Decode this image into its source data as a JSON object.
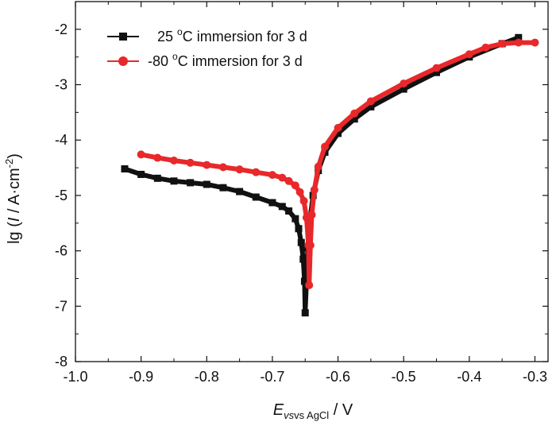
{
  "chart_data": {
    "type": "line",
    "title": "",
    "xlabel": {
      "main": "E",
      "sub": "vs AgCl",
      "rest": " / V"
    },
    "ylabel": {
      "pre": "lg (",
      "var": "I",
      "mid": " / A·cm",
      "sup": "-2",
      "post": ")"
    },
    "xlim": [
      -1.0,
      -0.28
    ],
    "ylim": [
      -8,
      -1.5
    ],
    "xticks": [
      -1.0,
      -0.9,
      -0.8,
      -0.7,
      -0.6,
      -0.5,
      -0.4,
      -0.3
    ],
    "xtick_labels": [
      "-1.0",
      "-0.9",
      "-0.8",
      "-0.7",
      "-0.6",
      "-0.5",
      "-0.4",
      "-0.3"
    ],
    "yticks": [
      -8,
      -7,
      -6,
      -5,
      -4,
      -3,
      -2
    ],
    "ytick_labels": [
      "-8",
      "-7",
      "-6",
      "-5",
      "-4",
      "-3",
      "-2"
    ],
    "legend_position": "top-left",
    "series": [
      {
        "name": "25 °C immersion for 3 d",
        "legend_parts": {
          "num": "25 ",
          "sup": "o",
          "rest": "C immersion for 3 d"
        },
        "color": "#111111",
        "marker": "square",
        "points": [
          [
            -0.925,
            -4.52
          ],
          [
            -0.9,
            -4.62
          ],
          [
            -0.875,
            -4.69
          ],
          [
            -0.85,
            -4.74
          ],
          [
            -0.825,
            -4.77
          ],
          [
            -0.8,
            -4.8
          ],
          [
            -0.775,
            -4.86
          ],
          [
            -0.75,
            -4.93
          ],
          [
            -0.725,
            -5.03
          ],
          [
            -0.7,
            -5.13
          ],
          [
            -0.685,
            -5.2
          ],
          [
            -0.675,
            -5.28
          ],
          [
            -0.665,
            -5.42
          ],
          [
            -0.66,
            -5.6
          ],
          [
            -0.656,
            -5.85
          ],
          [
            -0.653,
            -6.15
          ],
          [
            -0.651,
            -6.55
          ],
          [
            -0.65,
            -7.12
          ],
          [
            -0.648,
            -6.55
          ],
          [
            -0.646,
            -5.95
          ],
          [
            -0.643,
            -5.45
          ],
          [
            -0.638,
            -5.0
          ],
          [
            -0.63,
            -4.55
          ],
          [
            -0.62,
            -4.22
          ],
          [
            -0.6,
            -3.88
          ],
          [
            -0.575,
            -3.62
          ],
          [
            -0.55,
            -3.4
          ],
          [
            -0.5,
            -3.08
          ],
          [
            -0.45,
            -2.78
          ],
          [
            -0.4,
            -2.5
          ],
          [
            -0.35,
            -2.26
          ],
          [
            -0.325,
            -2.15
          ]
        ]
      },
      {
        "name": "-80 °C immersion for 3 d",
        "legend_parts": {
          "num": "-80 ",
          "sup": "o",
          "rest": "C immersion for 3 d"
        },
        "color": "#e8282a",
        "marker": "circle",
        "points": [
          [
            -0.9,
            -4.26
          ],
          [
            -0.875,
            -4.32
          ],
          [
            -0.85,
            -4.37
          ],
          [
            -0.825,
            -4.41
          ],
          [
            -0.8,
            -4.45
          ],
          [
            -0.775,
            -4.49
          ],
          [
            -0.75,
            -4.53
          ],
          [
            -0.725,
            -4.58
          ],
          [
            -0.7,
            -4.63
          ],
          [
            -0.685,
            -4.68
          ],
          [
            -0.675,
            -4.74
          ],
          [
            -0.665,
            -4.82
          ],
          [
            -0.658,
            -4.94
          ],
          [
            -0.652,
            -5.1
          ],
          [
            -0.648,
            -5.4
          ],
          [
            -0.645,
            -5.9
          ],
          [
            -0.644,
            -6.62
          ],
          [
            -0.642,
            -5.9
          ],
          [
            -0.64,
            -5.35
          ],
          [
            -0.636,
            -4.9
          ],
          [
            -0.63,
            -4.48
          ],
          [
            -0.62,
            -4.12
          ],
          [
            -0.6,
            -3.78
          ],
          [
            -0.575,
            -3.52
          ],
          [
            -0.55,
            -3.3
          ],
          [
            -0.5,
            -2.98
          ],
          [
            -0.45,
            -2.7
          ],
          [
            -0.4,
            -2.45
          ],
          [
            -0.375,
            -2.33
          ],
          [
            -0.35,
            -2.26
          ],
          [
            -0.325,
            -2.24
          ],
          [
            -0.3,
            -2.24
          ]
        ]
      }
    ]
  }
}
